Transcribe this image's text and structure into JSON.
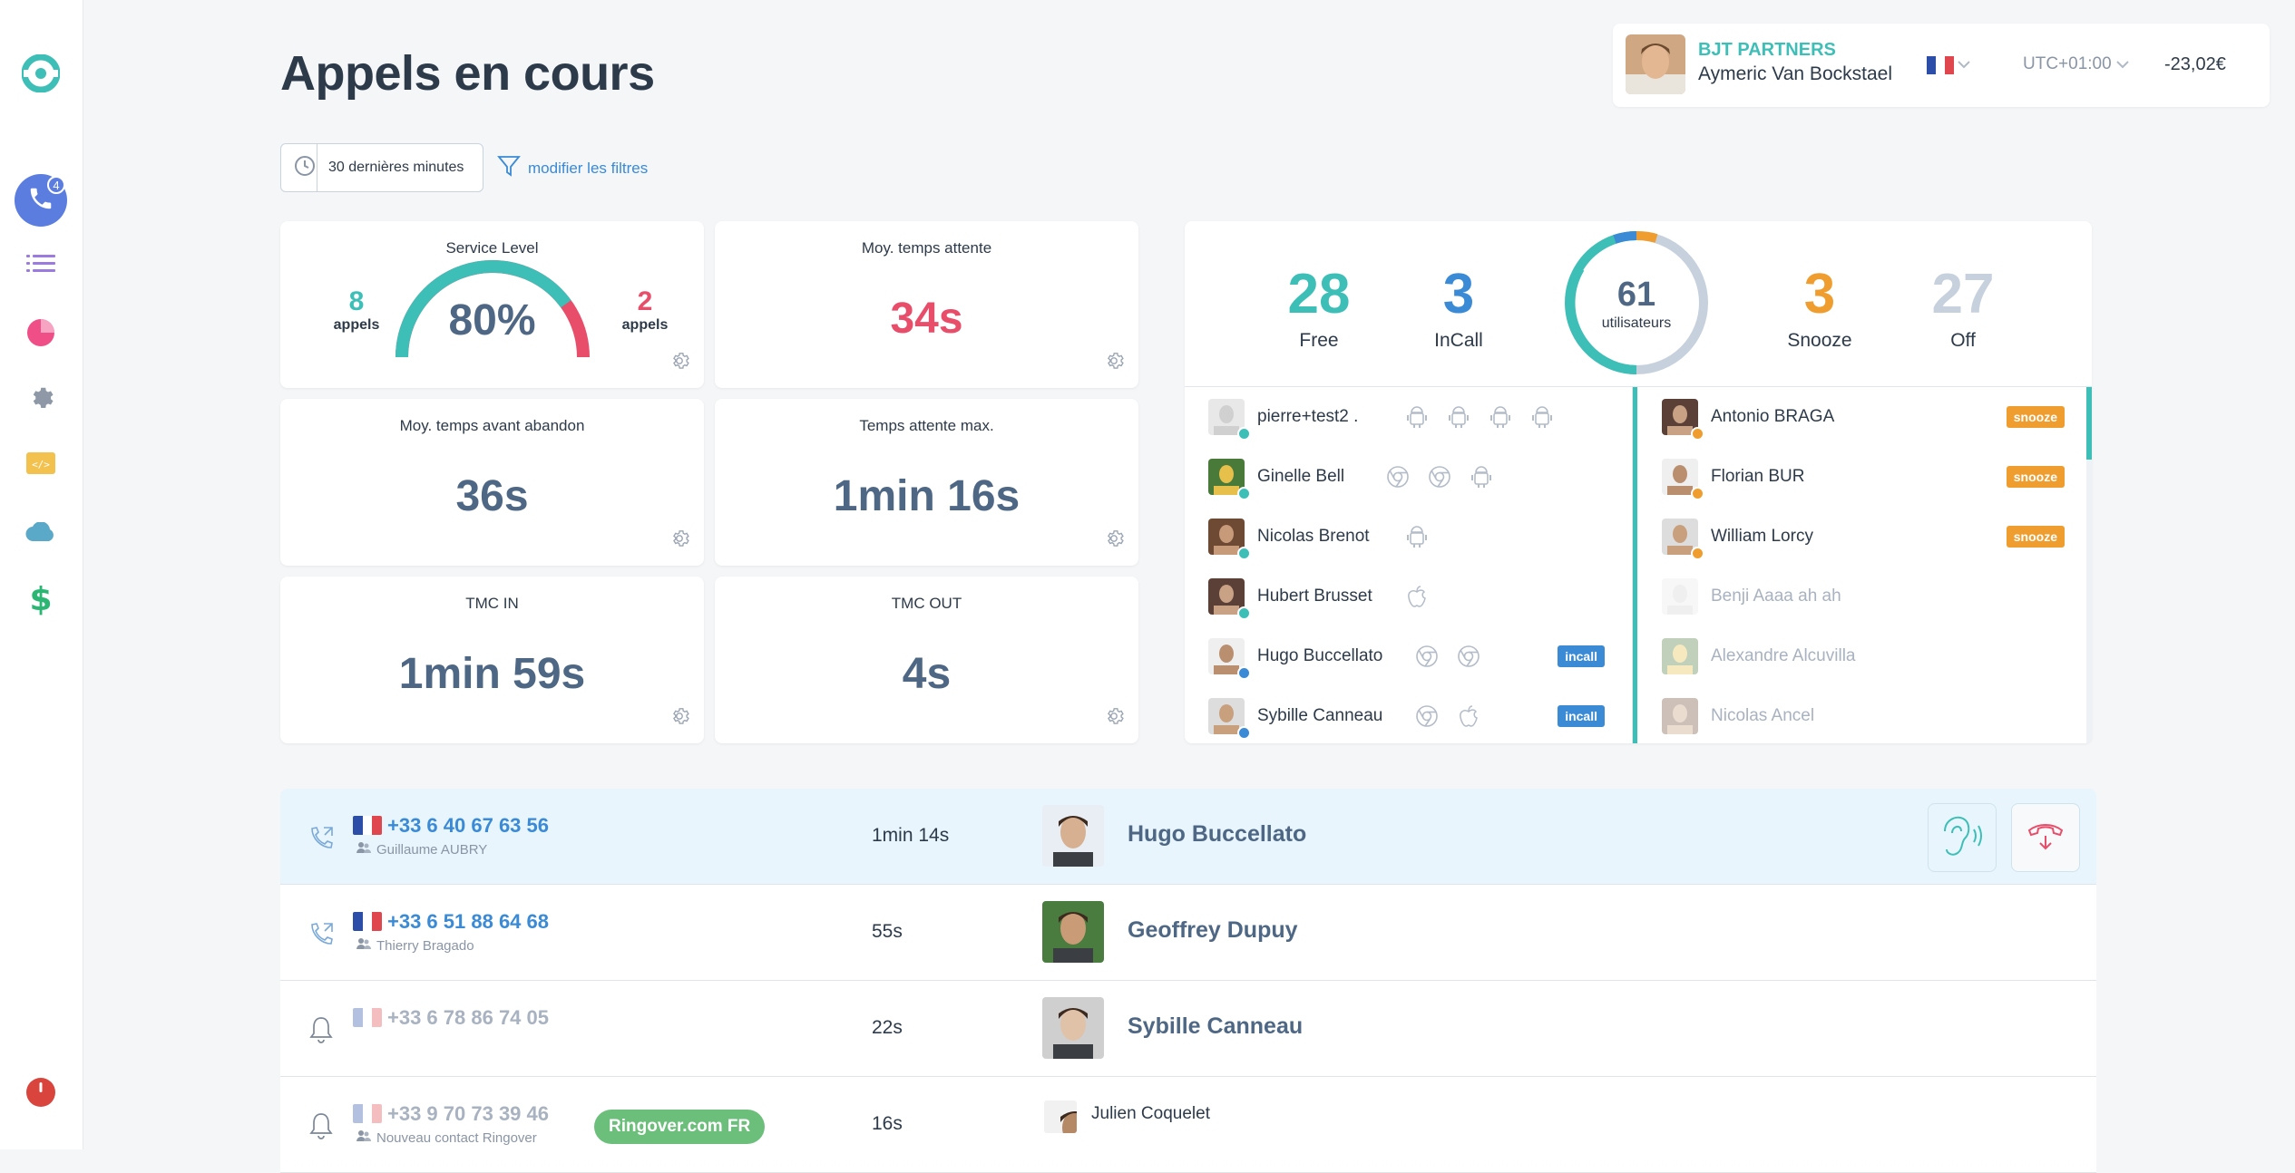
{
  "page": {
    "title": "Appels en cours"
  },
  "sidebar": {
    "calls_badge": "4"
  },
  "account": {
    "company": "BJT PARTNERS",
    "user": "Aymeric Van Bockstael",
    "timezone": "UTC+01:00",
    "balance": "-23,02€"
  },
  "filters": {
    "time_range": "30 dernières minutes",
    "modify_label": "modifier les filtres"
  },
  "kpis": {
    "service_level": {
      "title": "Service Level",
      "value": "80%",
      "ok_count": "8",
      "ok_label": "appels",
      "ko_count": "2",
      "ko_label": "appels",
      "fraction": 0.8
    },
    "avg_wait": {
      "title": "Moy. temps attente",
      "value": "34s"
    },
    "avg_before_abandon": {
      "title": "Moy. temps avant abandon",
      "value": "36s"
    },
    "max_wait": {
      "title": "Temps attente max.",
      "value": "1min 16s"
    },
    "tmc_in": {
      "title": "TMC IN",
      "value": "1min 59s"
    },
    "tmc_out": {
      "title": "TMC OUT",
      "value": "4s"
    }
  },
  "users_summary": {
    "free": {
      "value": "28",
      "label": "Free",
      "color": "#3dbfb8"
    },
    "incall": {
      "value": "3",
      "label": "InCall",
      "color": "#3a8ad6"
    },
    "total": {
      "value": "61",
      "label": "utilisateurs"
    },
    "snooze": {
      "value": "3",
      "label": "Snooze",
      "color": "#ef9d2f"
    },
    "off": {
      "value": "27",
      "label": "Off",
      "color": "#c7d1de"
    }
  },
  "users_left": [
    {
      "name": "pierre+test2 .",
      "status": "free",
      "devices": [
        "android",
        "android",
        "android",
        "android"
      ]
    },
    {
      "name": "Ginelle Bell",
      "status": "free",
      "devices": [
        "chrome",
        "chrome",
        "android"
      ]
    },
    {
      "name": "Nicolas Brenot",
      "status": "free",
      "devices": [
        "android"
      ]
    },
    {
      "name": "Hubert Brusset",
      "status": "free",
      "devices": [
        "apple"
      ]
    },
    {
      "name": "Hugo Buccellato",
      "status": "incall",
      "devices": [
        "chrome",
        "chrome"
      ],
      "badge": "incall"
    },
    {
      "name": "Sybille Canneau",
      "status": "incall",
      "devices": [
        "chrome",
        "apple"
      ],
      "badge": "incall"
    }
  ],
  "users_right": [
    {
      "name": "Antonio BRAGA",
      "status": "snooze",
      "badge": "snooze"
    },
    {
      "name": "Florian BUR",
      "status": "snooze",
      "badge": "snooze"
    },
    {
      "name": "William Lorcy",
      "status": "snooze",
      "badge": "snooze"
    },
    {
      "name": "Benji Aaaa ah ah",
      "status": "off"
    },
    {
      "name": "Alexandre Alcuvilla",
      "status": "off"
    },
    {
      "name": "Nicolas Ancel",
      "status": "off"
    }
  ],
  "calls": [
    {
      "type": "outgoing",
      "number": "+33 6 40 67 63 56",
      "contact": "Guillaume AUBRY",
      "duration": "1min 14s",
      "agent": "Hugo Buccellato",
      "highlight": true
    },
    {
      "type": "outgoing",
      "number": "+33 6 51 88 64 68",
      "contact": "Thierry Bragado",
      "duration": "55s",
      "agent": "Geoffrey Dupuy"
    },
    {
      "type": "ringing",
      "number": "+33 6 78 86 74 05",
      "contact": "",
      "duration": "22s",
      "agent": "Sybille Canneau"
    },
    {
      "type": "ringing",
      "number": "+33 9 70 73 39 46",
      "contact": "Nouveau contact Ringover",
      "duration": "16s",
      "agent": "Julien Coquelet",
      "tag": "Ringover.com FR"
    }
  ]
}
